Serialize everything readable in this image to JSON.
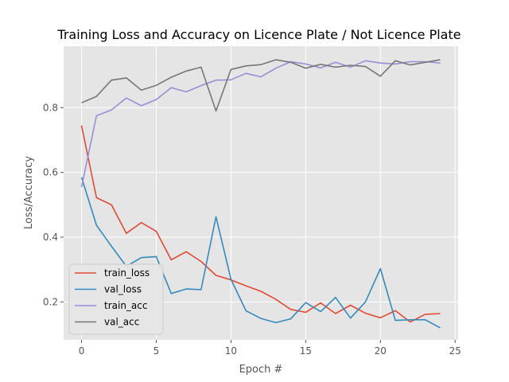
{
  "chart_data": {
    "type": "line",
    "title": "Training Loss and Accuracy on Licence Plate / Not Licence Plate",
    "xlabel": "Epoch #",
    "ylabel": "Loss/Accuracy",
    "xlim": [
      -1.2,
      25.2
    ],
    "ylim": [
      0.083,
      0.99
    ],
    "xticks": [
      0,
      5,
      10,
      15,
      20,
      25
    ],
    "yticks": [
      0.2,
      0.4,
      0.6,
      0.8
    ],
    "grid": true,
    "legend_position": "lower-left",
    "x": [
      0,
      1,
      2,
      3,
      4,
      5,
      6,
      7,
      8,
      9,
      10,
      11,
      12,
      13,
      14,
      15,
      16,
      17,
      18,
      19,
      20,
      21,
      22,
      23,
      24
    ],
    "series": [
      {
        "name": "train_loss",
        "color": "#E24A33",
        "values": [
          0.745,
          0.522,
          0.5,
          0.412,
          0.445,
          0.418,
          0.33,
          0.355,
          0.325,
          0.282,
          0.268,
          0.25,
          0.233,
          0.208,
          0.177,
          0.168,
          0.197,
          0.164,
          0.19,
          0.165,
          0.151,
          0.173,
          0.138,
          0.162,
          0.164
        ]
      },
      {
        "name": "val_loss",
        "color": "#348ABD",
        "values": [
          0.585,
          0.437,
          0.372,
          0.31,
          0.337,
          0.34,
          0.226,
          0.24,
          0.238,
          0.463,
          0.27,
          0.173,
          0.149,
          0.136,
          0.148,
          0.198,
          0.17,
          0.214,
          0.15,
          0.2,
          0.303,
          0.143,
          0.145,
          0.145,
          0.12
        ]
      },
      {
        "name": "train_acc",
        "color": "#988ED5",
        "values": [
          0.555,
          0.775,
          0.793,
          0.83,
          0.806,
          0.825,
          0.862,
          0.849,
          0.868,
          0.885,
          0.886,
          0.906,
          0.895,
          0.922,
          0.942,
          0.935,
          0.923,
          0.94,
          0.925,
          0.945,
          0.938,
          0.935,
          0.942,
          0.942,
          0.938
        ]
      },
      {
        "name": "val_acc",
        "color": "#777777",
        "values": [
          0.815,
          0.835,
          0.885,
          0.892,
          0.854,
          0.869,
          0.894,
          0.913,
          0.925,
          0.79,
          0.918,
          0.929,
          0.933,
          0.948,
          0.94,
          0.922,
          0.934,
          0.925,
          0.931,
          0.927,
          0.897,
          0.945,
          0.932,
          0.94,
          0.948
        ]
      }
    ]
  }
}
